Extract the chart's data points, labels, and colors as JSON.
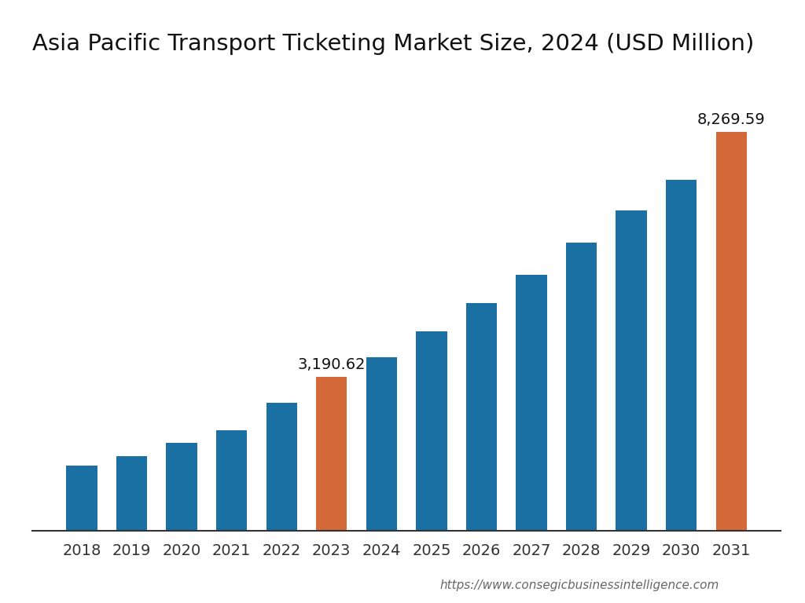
{
  "title": "Asia Pacific Transport Ticketing Market Size, 2024 (USD Million)",
  "years": [
    2018,
    2019,
    2020,
    2021,
    2022,
    2023,
    2024,
    2025,
    2026,
    2027,
    2028,
    2029,
    2030,
    2031
  ],
  "values": [
    1350,
    1550,
    1820,
    2080,
    2650,
    3190.62,
    3600,
    4130,
    4720,
    5310,
    5970,
    6640,
    7280,
    8269.59
  ],
  "bar_colors": [
    "#1a6fa3",
    "#1a6fa3",
    "#1a6fa3",
    "#1a6fa3",
    "#1a6fa3",
    "#d4693a",
    "#1a6fa3",
    "#1a6fa3",
    "#1a6fa3",
    "#1a6fa3",
    "#1a6fa3",
    "#1a6fa3",
    "#1a6fa3",
    "#d4693a"
  ],
  "highlighted_years": [
    2023,
    2031
  ],
  "highlighted_labels": [
    "3,190.62",
    "8,269.59"
  ],
  "url": "https://www.consegicbusinessintelligence.com",
  "background_color": "#ffffff",
  "title_fontsize": 21,
  "tick_fontsize": 14,
  "label_fontsize": 14,
  "url_fontsize": 11,
  "ylim": [
    0,
    9500
  ],
  "bar_width": 0.62
}
